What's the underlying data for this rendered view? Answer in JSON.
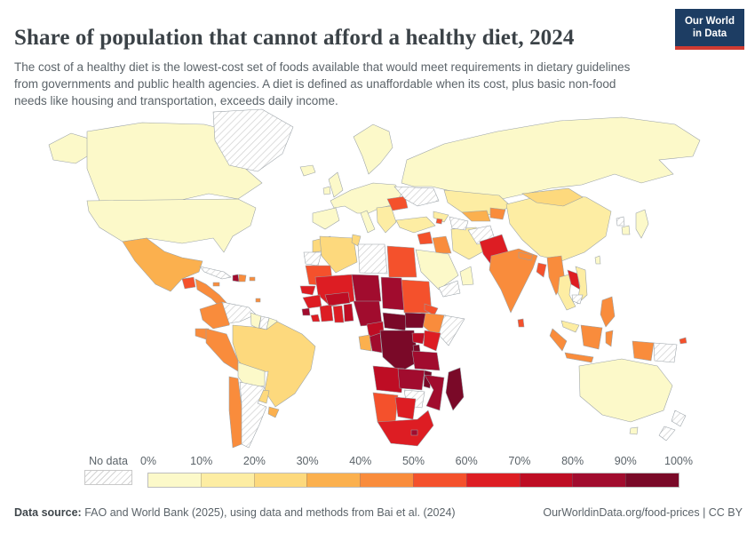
{
  "header": {
    "title": "Share of population that cannot afford a healthy diet, 2024",
    "subtitle": "The cost of a healthy diet is the lowest-cost set of foods available that would meet requirements in dietary guidelines from governments and public health agencies. A diet is defined as unaffordable when its cost, plus basic non-food needs like housing and transportation, exceeds daily income."
  },
  "logo": {
    "line1": "Our World",
    "line2": "in Data",
    "bg_color": "#1d3d63",
    "accent_color": "#cf3b32"
  },
  "legend": {
    "no_data_label": "No data",
    "tick_labels": [
      "0%",
      "10%",
      "20%",
      "30%",
      "40%",
      "50%",
      "60%",
      "70%",
      "80%",
      "90%",
      "100%"
    ],
    "bins": [
      {
        "range": "0-10%",
        "color": "#FCF9C9"
      },
      {
        "range": "10-20%",
        "color": "#FDEDA3"
      },
      {
        "range": "20-30%",
        "color": "#FDD97D"
      },
      {
        "range": "30-40%",
        "color": "#FBB04E"
      },
      {
        "range": "40-50%",
        "color": "#F98C3C"
      },
      {
        "range": "50-60%",
        "color": "#F4512C"
      },
      {
        "range": "60-70%",
        "color": "#DD1D23"
      },
      {
        "range": "70-80%",
        "color": "#BE0D24"
      },
      {
        "range": "80-90%",
        "color": "#A10C2E"
      },
      {
        "range": "90-100%",
        "color": "#7A0928"
      }
    ]
  },
  "footer": {
    "source_label": "Data source:",
    "source_text": "FAO and World Bank (2025), using data and methods from Bai et al. (2024)",
    "link_text": "OurWorldinData.org/food-prices | CC BY"
  },
  "chart_data": {
    "type": "choropleth",
    "title": "Share of population that cannot afford a healthy diet, 2024",
    "unit": "% of population",
    "legend_bins": [
      "0-10%",
      "10-20%",
      "20-30%",
      "30-40%",
      "40-50%",
      "50-60%",
      "60-70%",
      "70-80%",
      "80-90%",
      "90-100%",
      "No data"
    ],
    "countries": [
      {
        "key": "canada",
        "name": "Canada",
        "bin": 0
      },
      {
        "key": "alaska",
        "name": "United States (Alaska)",
        "bin": 0
      },
      {
        "key": "usa",
        "name": "United States",
        "bin": 0
      },
      {
        "key": "greenland",
        "name": "Greenland",
        "bin": "no-data"
      },
      {
        "key": "mexico",
        "name": "Mexico",
        "bin": 3
      },
      {
        "key": "guatemala",
        "name": "Guatemala",
        "bin": 5
      },
      {
        "key": "central-america",
        "name": "Honduras & Nicaragua",
        "bin": 4
      },
      {
        "key": "cuba",
        "name": "Cuba",
        "bin": "no-data"
      },
      {
        "key": "jamaica",
        "name": "Jamaica",
        "bin": 4
      },
      {
        "key": "haiti",
        "name": "Haiti",
        "bin": 8
      },
      {
        "key": "dominican-republic",
        "name": "Dominican Republic",
        "bin": 4
      },
      {
        "key": "puerto-rico",
        "name": "Puerto Rico",
        "bin": 4
      },
      {
        "key": "trinidad",
        "name": "Trinidad and Tobago",
        "bin": 4
      },
      {
        "key": "colombia",
        "name": "Colombia",
        "bin": 4
      },
      {
        "key": "venezuela",
        "name": "Venezuela",
        "bin": "no-data"
      },
      {
        "key": "guyana",
        "name": "Guyana",
        "bin": 0
      },
      {
        "key": "suriname",
        "name": "Suriname",
        "bin": "no-data"
      },
      {
        "key": "french-guiana",
        "name": "French Guiana",
        "bin": 0
      },
      {
        "key": "ecuador",
        "name": "Ecuador",
        "bin": 4
      },
      {
        "key": "peru",
        "name": "Peru",
        "bin": 4
      },
      {
        "key": "brazil",
        "name": "Brazil",
        "bin": 2
      },
      {
        "key": "bolivia",
        "name": "Bolivia",
        "bin": 0
      },
      {
        "key": "paraguay",
        "name": "Paraguay",
        "bin": 2
      },
      {
        "key": "uruguay",
        "name": "Uruguay",
        "bin": 3
      },
      {
        "key": "chile",
        "name": "Chile",
        "bin": 4
      },
      {
        "key": "argentina",
        "name": "Argentina",
        "bin": "no-data"
      },
      {
        "key": "iceland",
        "name": "Iceland",
        "bin": 0
      },
      {
        "key": "uk",
        "name": "United Kingdom",
        "bin": 0
      },
      {
        "key": "ireland",
        "name": "Ireland",
        "bin": 0
      },
      {
        "key": "scandinavia",
        "name": "Scandinavia",
        "bin": 0
      },
      {
        "key": "europe-core",
        "name": "Western & Central Europe",
        "bin": 0
      },
      {
        "key": "iberia",
        "name": "Spain & Portugal",
        "bin": 0
      },
      {
        "key": "italy",
        "name": "Italy",
        "bin": 0
      },
      {
        "key": "balkans",
        "name": "Balkans",
        "bin": 1
      },
      {
        "key": "romania",
        "name": "Romania",
        "bin": 5
      },
      {
        "key": "ukraine",
        "name": "Ukraine",
        "bin": "no-data"
      },
      {
        "key": "russia",
        "name": "Russia",
        "bin": 0
      },
      {
        "key": "turkey",
        "name": "Turkey",
        "bin": 1
      },
      {
        "key": "caucasus",
        "name": "Georgia & Azerbaijan",
        "bin": 1
      },
      {
        "key": "armenia",
        "name": "Armenia",
        "bin": 5
      },
      {
        "key": "syria",
        "name": "Syria",
        "bin": 5
      },
      {
        "key": "iraq",
        "name": "Iraq",
        "bin": 4
      },
      {
        "key": "iran",
        "name": "Iran",
        "bin": 1
      },
      {
        "key": "saudi-arabia",
        "name": "Saudi Arabia",
        "bin": 0
      },
      {
        "key": "yemen",
        "name": "Yemen",
        "bin": "no-data"
      },
      {
        "key": "oman",
        "name": "Oman",
        "bin": 0
      },
      {
        "key": "kazakhstan",
        "name": "Kazakhstan",
        "bin": 1
      },
      {
        "key": "uzbekistan",
        "name": "Uzbekistan",
        "bin": 3
      },
      {
        "key": "turkmenistan",
        "name": "Turkmenistan",
        "bin": "no-data"
      },
      {
        "key": "kyrgyzstan-tajikistan",
        "name": "Kyrgyzstan & Tajikistan",
        "bin": 4
      },
      {
        "key": "afghanistan",
        "name": "Afghanistan",
        "bin": "no-data"
      },
      {
        "key": "pakistan",
        "name": "Pakistan",
        "bin": 6
      },
      {
        "key": "china",
        "name": "China",
        "bin": 1
      },
      {
        "key": "mongolia",
        "name": "Mongolia",
        "bin": 2
      },
      {
        "key": "japan",
        "name": "Japan",
        "bin": 0
      },
      {
        "key": "north-korea",
        "name": "North Korea",
        "bin": "no-data"
      },
      {
        "key": "south-korea",
        "name": "South Korea",
        "bin": 0
      },
      {
        "key": "taiwan",
        "name": "Taiwan",
        "bin": 0
      },
      {
        "key": "india",
        "name": "India",
        "bin": 4
      },
      {
        "key": "nepal",
        "name": "Nepal",
        "bin": 4
      },
      {
        "key": "bangladesh",
        "name": "Bangladesh",
        "bin": 5
      },
      {
        "key": "sri-lanka",
        "name": "Sri Lanka",
        "bin": 5
      },
      {
        "key": "myanmar",
        "name": "Myanmar",
        "bin": 4
      },
      {
        "key": "thailand",
        "name": "Thailand",
        "bin": 1
      },
      {
        "key": "laos",
        "name": "Laos",
        "bin": 6
      },
      {
        "key": "vietnam",
        "name": "Vietnam",
        "bin": 1
      },
      {
        "key": "cambodia",
        "name": "Cambodia",
        "bin": "no-data"
      },
      {
        "key": "malaysia",
        "name": "Malaysia",
        "bin": 1
      },
      {
        "key": "indonesia",
        "name": "Indonesia",
        "bin": 4
      },
      {
        "key": "philippines",
        "name": "Philippines",
        "bin": 4
      },
      {
        "key": "papua-new-guinea",
        "name": "Papua New Guinea",
        "bin": "no-data"
      },
      {
        "key": "australia",
        "name": "Australia",
        "bin": 0
      },
      {
        "key": "new-zealand",
        "name": "New Zealand",
        "bin": "no-data"
      },
      {
        "key": "fiji",
        "name": "Fiji",
        "bin": 5
      },
      {
        "key": "morocco",
        "name": "Morocco",
        "bin": 2
      },
      {
        "key": "western-sahara",
        "name": "Western Sahara",
        "bin": "no-data"
      },
      {
        "key": "algeria",
        "name": "Algeria",
        "bin": 2
      },
      {
        "key": "tunisia",
        "name": "Tunisia",
        "bin": 2
      },
      {
        "key": "libya",
        "name": "Libya",
        "bin": "no-data"
      },
      {
        "key": "egypt",
        "name": "Egypt",
        "bin": 5
      },
      {
        "key": "mauritania",
        "name": "Mauritania",
        "bin": 5
      },
      {
        "key": "mali",
        "name": "Mali",
        "bin": 6
      },
      {
        "key": "niger",
        "name": "Niger",
        "bin": 8
      },
      {
        "key": "chad",
        "name": "Chad",
        "bin": 8
      },
      {
        "key": "sudan",
        "name": "Sudan",
        "bin": 5
      },
      {
        "key": "eritrea",
        "name": "Eritrea",
        "bin": 5
      },
      {
        "key": "ethiopia",
        "name": "Ethiopia",
        "bin": 4
      },
      {
        "key": "somalia",
        "name": "Somalia",
        "bin": "no-data"
      },
      {
        "key": "senegal",
        "name": "Senegal",
        "bin": 6
      },
      {
        "key": "guinea",
        "name": "Guinea",
        "bin": 6
      },
      {
        "key": "sierra-leone",
        "name": "Sierra Leone",
        "bin": 8
      },
      {
        "key": "liberia",
        "name": "Liberia",
        "bin": 6
      },
      {
        "key": "cote-divoire",
        "name": "Cote d'Ivoire",
        "bin": 6
      },
      {
        "key": "ghana",
        "name": "Ghana",
        "bin": 6
      },
      {
        "key": "togo-benin",
        "name": "Togo & Benin",
        "bin": 7
      },
      {
        "key": "burkina-faso",
        "name": "Burkina Faso",
        "bin": 7
      },
      {
        "key": "nigeria",
        "name": "Nigeria",
        "bin": 8
      },
      {
        "key": "cameroon",
        "name": "Cameroon",
        "bin": 7
      },
      {
        "key": "central-african-republic",
        "name": "Central African Republic",
        "bin": 9
      },
      {
        "key": "south-sudan",
        "name": "South Sudan",
        "bin": 9
      },
      {
        "key": "drc",
        "name": "Democratic Republic of Congo",
        "bin": 9
      },
      {
        "key": "congo",
        "name": "Congo",
        "bin": 8
      },
      {
        "key": "gabon",
        "name": "Gabon",
        "bin": 3
      },
      {
        "key": "uganda",
        "name": "Uganda",
        "bin": 7
      },
      {
        "key": "kenya",
        "name": "Kenya",
        "bin": 6
      },
      {
        "key": "rwanda-burundi",
        "name": "Rwanda & Burundi",
        "bin": 9
      },
      {
        "key": "tanzania",
        "name": "Tanzania",
        "bin": 8
      },
      {
        "key": "angola",
        "name": "Angola",
        "bin": 7
      },
      {
        "key": "zambia",
        "name": "Zambia",
        "bin": 8
      },
      {
        "key": "malawi",
        "name": "Malawi",
        "bin": 9
      },
      {
        "key": "mozambique",
        "name": "Mozambique",
        "bin": 8
      },
      {
        "key": "zimbabwe",
        "name": "Zimbabwe",
        "bin": "no-data"
      },
      {
        "key": "namibia",
        "name": "Namibia",
        "bin": 5
      },
      {
        "key": "botswana",
        "name": "Botswana",
        "bin": 6
      },
      {
        "key": "south-africa",
        "name": "South Africa",
        "bin": 6
      },
      {
        "key": "lesotho",
        "name": "Lesotho",
        "bin": 8
      },
      {
        "key": "madagascar",
        "name": "Madagascar",
        "bin": 9
      }
    ]
  }
}
